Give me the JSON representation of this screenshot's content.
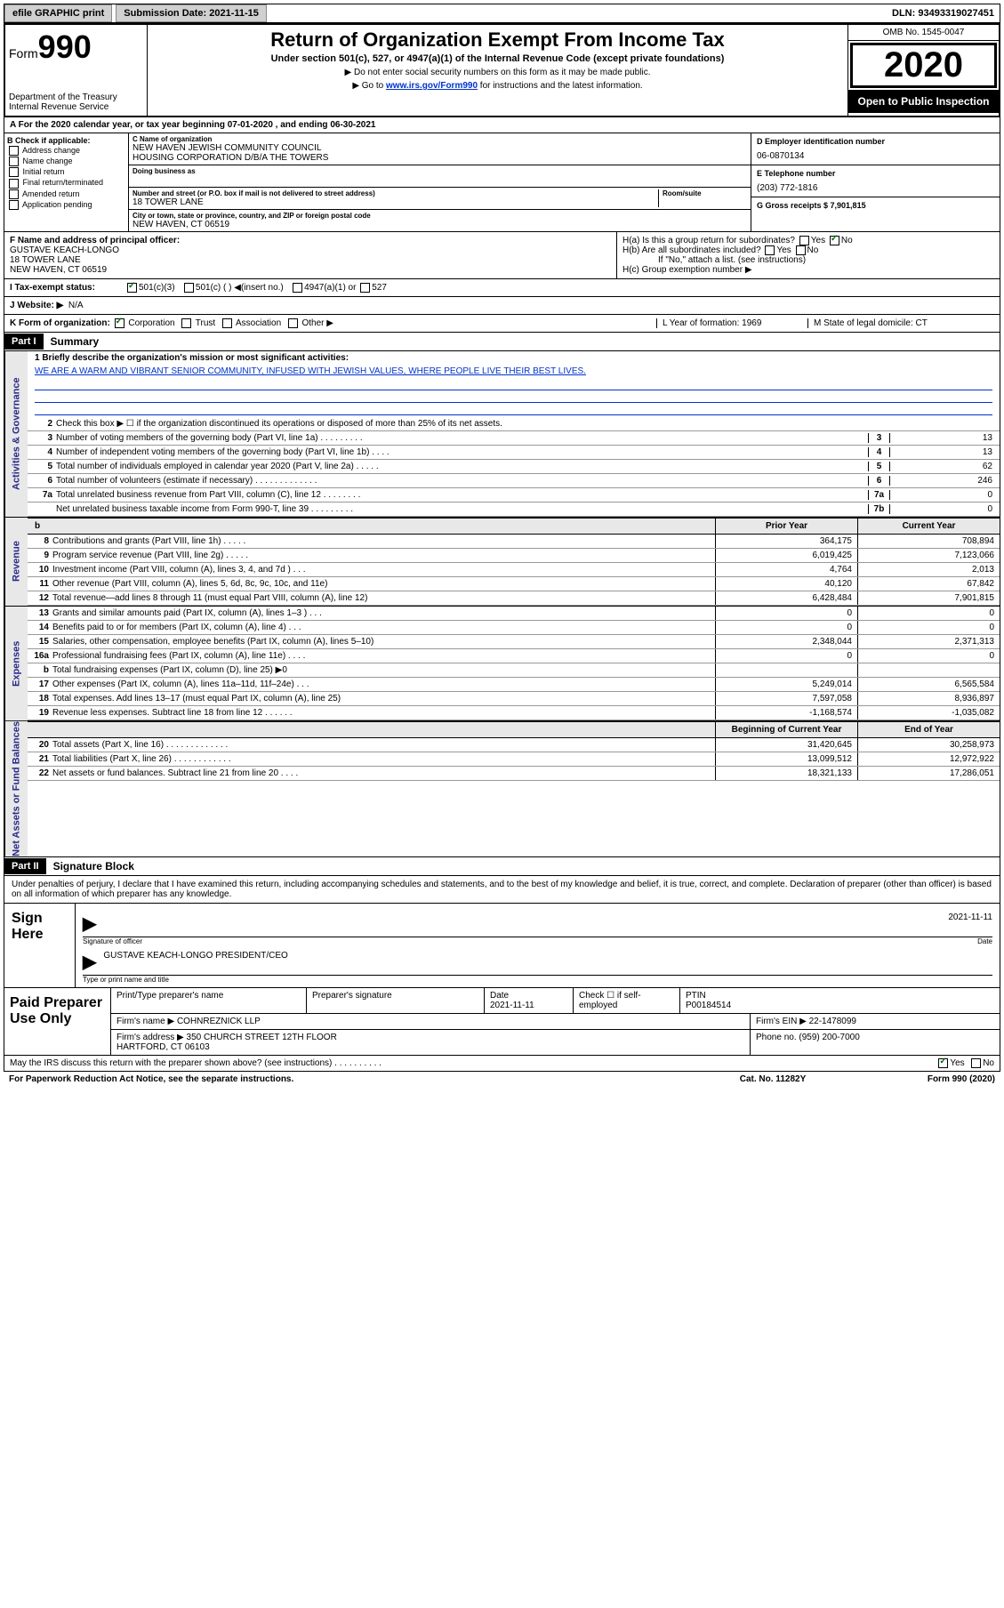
{
  "top": {
    "efile": "efile GRAPHIC print",
    "sub_date_label": "Submission Date: 2021-11-15",
    "dln": "DLN: 93493319027451"
  },
  "header": {
    "form_word": "Form",
    "form_num": "990",
    "dept": "Department of the Treasury\nInternal Revenue Service",
    "title": "Return of Organization Exempt From Income Tax",
    "sub1": "Under section 501(c), 527, or 4947(a)(1) of the Internal Revenue Code (except private foundations)",
    "sub2a": "▶ Do not enter social security numbers on this form as it may be made public.",
    "sub2b_pre": "▶ Go to ",
    "sub2b_link": "www.irs.gov/Form990",
    "sub2b_post": " for instructions and the latest information.",
    "omb": "OMB No. 1545-0047",
    "year": "2020",
    "open_pub": "Open to Public Inspection"
  },
  "lineA": "A For the 2020 calendar year, or tax year beginning 07-01-2020   , and ending 06-30-2021",
  "colB": {
    "hdr": "B Check if applicable:",
    "items": [
      "Address change",
      "Name change",
      "Initial return",
      "Final return/terminated",
      "Amended return",
      "Application pending"
    ]
  },
  "colC": {
    "name_lbl": "C Name of organization",
    "name": "NEW HAVEN JEWISH COMMUNITY COUNCIL\nHOUSING CORPORATION D/B/A THE TOWERS",
    "dba_lbl": "Doing business as",
    "addr_lbl": "Number and street (or P.O. box if mail is not delivered to street address)",
    "room_lbl": "Room/suite",
    "addr": "18 TOWER LANE",
    "city_lbl": "City or town, state or province, country, and ZIP or foreign postal code",
    "city": "NEW HAVEN, CT  06519"
  },
  "colD": {
    "ein_lbl": "D Employer identification number",
    "ein": "06-0870134",
    "tel_lbl": "E Telephone number",
    "tel": "(203) 772-1816",
    "gross_lbl": "G Gross receipts $ 7,901,815"
  },
  "rowF": {
    "lbl": "F  Name and address of principal officer:",
    "name": "GUSTAVE KEACH-LONGO",
    "addr1": "18 TOWER LANE",
    "addr2": "NEW HAVEN, CT  06519"
  },
  "rowH": {
    "ha": "H(a)  Is this a group return for subordinates?",
    "hb": "H(b)  Are all subordinates included?",
    "hb_note": "If \"No,\" attach a list. (see instructions)",
    "hc": "H(c)  Group exemption number ▶",
    "yes": "Yes",
    "no": "No"
  },
  "rowI": {
    "lbl": "I    Tax-exempt status:",
    "o1": "501(c)(3)",
    "o2": "501(c) (  ) ◀(insert no.)",
    "o3": "4947(a)(1) or",
    "o4": "527"
  },
  "rowJ": {
    "lbl": "J    Website: ▶",
    "val": "N/A"
  },
  "rowK": {
    "lbl": "K Form of organization:",
    "o1": "Corporation",
    "o2": "Trust",
    "o3": "Association",
    "o4": "Other ▶",
    "l_lbl": "L Year of formation: 1969",
    "m_lbl": "M State of legal domicile: CT"
  },
  "part1": {
    "hdr": "Part I",
    "title": "Summary"
  },
  "gov": {
    "l1_lbl": "1  Briefly describe the organization's mission or most significant activities:",
    "l1_val": "WE ARE A WARM AND VIBRANT SENIOR COMMUNITY, INFUSED WITH JEWISH VALUES, WHERE PEOPLE LIVE THEIR BEST LIVES.",
    "l2": "Check this box ▶ ☐  if the organization discontinued its operations or disposed of more than 25% of its net assets.",
    "rows": [
      {
        "n": "3",
        "t": "Number of voting members of the governing body (Part VI, line 1a)   .   .   .   .   .   .   .   .   .",
        "b": "3",
        "v": "13"
      },
      {
        "n": "4",
        "t": "Number of independent voting members of the governing body (Part VI, line 1b)   .   .   .   .",
        "b": "4",
        "v": "13"
      },
      {
        "n": "5",
        "t": "Total number of individuals employed in calendar year 2020 (Part V, line 2a)   .   .   .   .   .",
        "b": "5",
        "v": "62"
      },
      {
        "n": "6",
        "t": "Total number of volunteers (estimate if necessary)   .   .   .   .   .   .   .   .   .   .   .   .   .",
        "b": "6",
        "v": "246"
      },
      {
        "n": "7a",
        "t": "Total unrelated business revenue from Part VIII, column (C), line 12   .   .   .   .   .   .   .   .",
        "b": "7a",
        "v": "0"
      },
      {
        "n": "",
        "t": "Net unrelated business taxable income from Form 990-T, line 39   .   .   .   .   .   .   .   .   .",
        "b": "7b",
        "v": "0"
      }
    ],
    "vtab": "Activities & Governance"
  },
  "col_hdr": {
    "prior": "Prior Year",
    "current": "Current Year"
  },
  "rev": {
    "vtab": "Revenue",
    "rows": [
      {
        "n": "8",
        "t": "Contributions and grants (Part VIII, line 1h)   .   .   .   .   .",
        "p": "364,175",
        "c": "708,894"
      },
      {
        "n": "9",
        "t": "Program service revenue (Part VIII, line 2g)   .   .   .   .   .",
        "p": "6,019,425",
        "c": "7,123,066"
      },
      {
        "n": "10",
        "t": "Investment income (Part VIII, column (A), lines 3, 4, and 7d )   .   .   .",
        "p": "4,764",
        "c": "2,013"
      },
      {
        "n": "11",
        "t": "Other revenue (Part VIII, column (A), lines 5, 6d, 8c, 9c, 10c, and 11e)",
        "p": "40,120",
        "c": "67,842"
      },
      {
        "n": "12",
        "t": "Total revenue—add lines 8 through 11 (must equal Part VIII, column (A), line 12)",
        "p": "6,428,484",
        "c": "7,901,815"
      }
    ]
  },
  "exp": {
    "vtab": "Expenses",
    "rows": [
      {
        "n": "13",
        "t": "Grants and similar amounts paid (Part IX, column (A), lines 1–3 )   .   .   .",
        "p": "0",
        "c": "0"
      },
      {
        "n": "14",
        "t": "Benefits paid to or for members (Part IX, column (A), line 4)   .   .   .",
        "p": "0",
        "c": "0"
      },
      {
        "n": "15",
        "t": "Salaries, other compensation, employee benefits (Part IX, column (A), lines 5–10)",
        "p": "2,348,044",
        "c": "2,371,313"
      },
      {
        "n": "16a",
        "t": "Professional fundraising fees (Part IX, column (A), line 11e)   .   .   .   .",
        "p": "0",
        "c": "0"
      },
      {
        "n": "b",
        "t": "Total fundraising expenses (Part IX, column (D), line 25) ▶0",
        "p": "",
        "c": ""
      },
      {
        "n": "17",
        "t": "Other expenses (Part IX, column (A), lines 11a–11d, 11f–24e)   .   .   .",
        "p": "5,249,014",
        "c": "6,565,584"
      },
      {
        "n": "18",
        "t": "Total expenses. Add lines 13–17 (must equal Part IX, column (A), line 25)",
        "p": "7,597,058",
        "c": "8,936,897"
      },
      {
        "n": "19",
        "t": "Revenue less expenses. Subtract line 18 from line 12   .   .   .   .   .   .",
        "p": "-1,168,574",
        "c": "-1,035,082"
      }
    ]
  },
  "na_hdr": {
    "begin": "Beginning of Current Year",
    "end": "End of Year"
  },
  "na": {
    "vtab": "Net Assets or Fund Balances",
    "rows": [
      {
        "n": "20",
        "t": "Total assets (Part X, line 16)   .   .   .   .   .   .   .   .   .   .   .   .   .",
        "p": "31,420,645",
        "c": "30,258,973"
      },
      {
        "n": "21",
        "t": "Total liabilities (Part X, line 26)   .   .   .   .   .   .   .   .   .   .   .   .",
        "p": "13,099,512",
        "c": "12,972,922"
      },
      {
        "n": "22",
        "t": "Net assets or fund balances. Subtract line 21 from line 20   .   .   .   .",
        "p": "18,321,133",
        "c": "17,286,051"
      }
    ]
  },
  "part2": {
    "hdr": "Part II",
    "title": "Signature Block"
  },
  "sig": {
    "perjury": "Under penalties of perjury, I declare that I have examined this return, including accompanying schedules and statements, and to the best of my knowledge and belief, it is true, correct, and complete. Declaration of preparer (other than officer) is based on all information of which preparer has any knowledge.",
    "sign_here": "Sign Here",
    "sig_officer": "Signature of officer",
    "date_lbl": "Date",
    "date": "2021-11-11",
    "name": "GUSTAVE KEACH-LONGO  PRESIDENT/CEO",
    "name_lbl": "Type or print name and title"
  },
  "prep": {
    "label": "Paid Preparer Use Only",
    "r1": {
      "c1": "Print/Type preparer's name",
      "c2": "Preparer's signature",
      "c3": "Date\n2021-11-11",
      "c4": "Check ☐ if self-employed",
      "c5": "PTIN\nP00184514"
    },
    "r2": {
      "c1": "Firm's name    ▶ COHNREZNICK LLP",
      "c2": "Firm's EIN ▶ 22-1478099"
    },
    "r3": {
      "c1": "Firm's address ▶ 350 CHURCH STREET 12TH FLOOR\nHARTFORD, CT  06103",
      "c2": "Phone no. (959) 200-7000"
    }
  },
  "footer": {
    "discuss": "May the IRS discuss this return with the preparer shown above? (see instructions)   .   .   .   .   .   .   .   .   .   .",
    "yes": "Yes",
    "no": "No",
    "notice": "For Paperwork Reduction Act Notice, see the separate instructions.",
    "cat": "Cat. No. 11282Y",
    "form": "Form 990 (2020)"
  }
}
